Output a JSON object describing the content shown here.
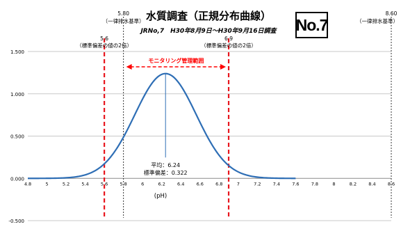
{
  "chart_data": {
    "type": "line",
    "title": "水質調査（正規分布曲線）",
    "subtitle": "JRNo,7　H30年8月9日～H30年9月16日調査",
    "badge": "No.7",
    "xlabel": "(pH)",
    "ylabel": "",
    "xlim": [
      4.8,
      8.6
    ],
    "ylim": [
      -0.5,
      1.5
    ],
    "x_ticks": [
      "4.8",
      "5",
      "5.2",
      "5.4",
      "5.6",
      "5.8",
      "6",
      "6.2",
      "6.4",
      "6.6",
      "6.8",
      "7",
      "7.2",
      "7.4",
      "7.6",
      "7.8",
      "8",
      "8.2",
      "8.4",
      "8.6"
    ],
    "y_ticks": [
      "-0.500",
      "0.000",
      "0.500",
      "1.000",
      "1.500"
    ],
    "grid": "horizontal",
    "series": [
      {
        "name": "",
        "color": "#2e6eb5",
        "mean": 6.24,
        "std": 0.322,
        "x_range": [
          4.8,
          7.6
        ],
        "peak_value": 1.239
      }
    ],
    "reference_lines": [
      {
        "x": 5.6,
        "style": "red-dashed",
        "value_label": "5.6",
        "label": "（標準偏差の値の2倍）"
      },
      {
        "x": 6.9,
        "style": "red-dashed",
        "value_label": "6.9",
        "label": "（標準偏差の値の2倍）"
      },
      {
        "x": 5.8,
        "style": "black-dotted",
        "value_label": "5.80",
        "label": "（一律排水基準）"
      },
      {
        "x": 8.6,
        "style": "black-dotted",
        "value_label": "8.60",
        "label": "（一律排水基準）"
      }
    ],
    "monitoring_range": {
      "label": "モニタリング管理範囲",
      "from": 5.8,
      "to": 6.9,
      "color": "#ff0000"
    },
    "annotations": {
      "mean_label": "平均：6.24",
      "std_label": "標準偏差：0.322"
    }
  }
}
